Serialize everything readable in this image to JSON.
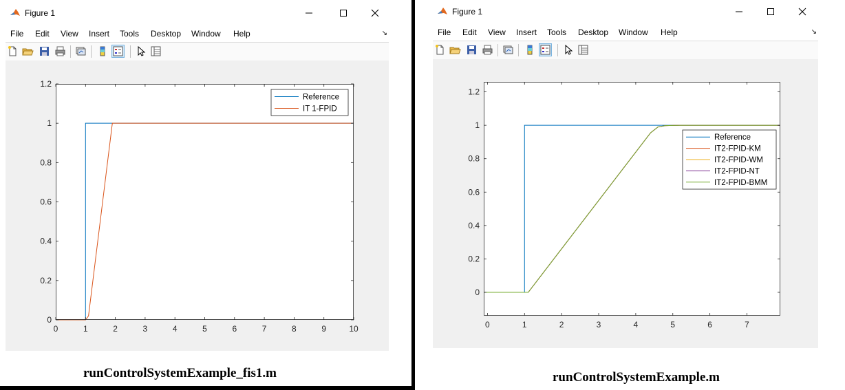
{
  "windows": [
    {
      "title": "Figure 1",
      "menu": [
        "File",
        "Edit",
        "View",
        "Insert",
        "Tools",
        "Desktop",
        "Window",
        "Help"
      ],
      "caption": "runControlSystemExample_fis1.m",
      "chart_data": {
        "type": "line",
        "title": "",
        "xlabel": "",
        "ylabel": "",
        "xlim": [
          0,
          10
        ],
        "ylim": [
          0,
          1.2
        ],
        "xticks": [
          0,
          1,
          2,
          3,
          4,
          5,
          6,
          7,
          8,
          9,
          10
        ],
        "yticks": [
          0,
          0.2,
          0.4,
          0.6,
          0.8,
          1,
          1.2
        ],
        "ytick_labels": [
          "0",
          "0.2",
          "0.4",
          "0.6",
          "0.8",
          "1",
          "1.2"
        ],
        "grid": false,
        "legend_position": "top-right",
        "series": [
          {
            "name": "Reference",
            "color": "#0072bd",
            "x": [
              0,
              1,
              1,
              10
            ],
            "y": [
              0,
              0,
              1,
              1
            ]
          },
          {
            "name": "IT 1-FPID",
            "color": "#d95319",
            "x": [
              0,
              1,
              1.1,
              1.9,
              10
            ],
            "y": [
              0,
              0,
              0.02,
              1,
              1
            ]
          }
        ]
      }
    },
    {
      "title": "Figure 1",
      "menu": [
        "File",
        "Edit",
        "View",
        "Insert",
        "Tools",
        "Desktop",
        "Window",
        "Help"
      ],
      "caption": "runControlSystemExample.m",
      "chart_data": {
        "type": "line",
        "title": "",
        "xlabel": "",
        "ylabel": "",
        "xlim": [
          -0.1,
          7.9
        ],
        "ylim": [
          -0.14,
          1.26
        ],
        "xticks": [
          0,
          1,
          2,
          3,
          4,
          5,
          6,
          7
        ],
        "yticks": [
          0,
          0.2,
          0.4,
          0.6,
          0.8,
          1,
          1.2
        ],
        "ytick_labels": [
          "0",
          "0.2",
          "0.4",
          "0.6",
          "0.8",
          "1",
          "1.2"
        ],
        "grid": false,
        "legend_position": "right",
        "series": [
          {
            "name": "Reference",
            "color": "#0072bd",
            "x": [
              -0.1,
              1,
              1,
              7.9
            ],
            "y": [
              0,
              0,
              1,
              1
            ]
          },
          {
            "name": "IT2-FPID-KM",
            "color": "#d95319",
            "x": [
              -0.1,
              1.1,
              4.4,
              4.6,
              4.8,
              5.2,
              7.9
            ],
            "y": [
              0,
              0,
              0.955,
              0.99,
              0.998,
              1,
              1
            ]
          },
          {
            "name": "IT2-FPID-WM",
            "color": "#edb120",
            "x": [
              -0.1,
              1.1,
              4.4,
              4.6,
              4.8,
              5.2,
              7.9
            ],
            "y": [
              0,
              0,
              0.955,
              0.99,
              0.998,
              1,
              1
            ]
          },
          {
            "name": "IT2-FPID-NT",
            "color": "#7e2f8e",
            "x": [
              -0.1,
              1.1,
              4.4,
              4.6,
              4.8,
              5.2,
              7.9
            ],
            "y": [
              0,
              0,
              0.955,
              0.99,
              0.998,
              1,
              1
            ]
          },
          {
            "name": "IT2-FPID-BMM",
            "color": "#77ac30",
            "x": [
              -0.1,
              1.1,
              4.4,
              4.6,
              4.8,
              5.2,
              7.9
            ],
            "y": [
              0,
              0,
              0.955,
              0.99,
              0.998,
              1,
              1
            ]
          }
        ]
      }
    }
  ]
}
